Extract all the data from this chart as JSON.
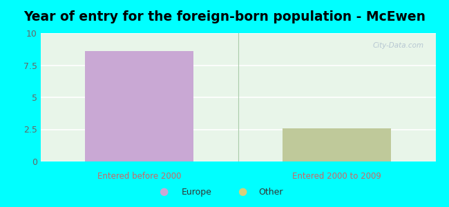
{
  "title": "Year of entry for the foreign-born population - McEwen",
  "title_fontsize": 13.5,
  "background_color": "#00FFFF",
  "plot_bg_color": "#e8f5e9",
  "categories": [
    "Entered before 2000",
    "Entered 2000 to 2009"
  ],
  "europe_values": [
    8.6,
    0
  ],
  "other_values": [
    0,
    2.6
  ],
  "europe_color": "#c9a8d4",
  "other_color": "#bfc99a",
  "ylim": [
    0,
    10
  ],
  "yticks": [
    0,
    2.5,
    5,
    7.5,
    10
  ],
  "ytick_labels": [
    "0",
    "2.5",
    "5",
    "7.5",
    "10"
  ],
  "grid_color": "#e0ede0",
  "bar_width": 0.55,
  "legend_europe_label": "Europe",
  "legend_other_label": "Other",
  "legend_europe_color": "#c9a8d4",
  "legend_other_color": "#d4cf7a",
  "watermark": "City-Data.com",
  "xtick_color": "#cc6666",
  "ytick_color": "#666666"
}
